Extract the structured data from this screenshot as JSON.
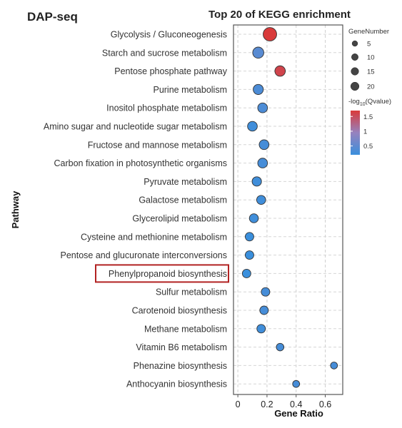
{
  "panel_label": "DAP-seq",
  "chart_data": {
    "type": "scatter",
    "title": "Top 20 of KEGG enrichment",
    "xlabel": "Gene Ratio",
    "ylabel": "Pathway",
    "xlim": [
      -0.03,
      0.72
    ],
    "xticks": [
      0,
      0.2,
      0.4,
      0.6
    ],
    "xtick_labels": [
      "0",
      "0.2",
      "0.4",
      "0.6"
    ],
    "grid": true,
    "legend_position": "right",
    "highlighted_pathway": "Phenylpropanoid biosynthesis",
    "highlight_color": "#b22222",
    "size_legend": {
      "title": "GeneNumber",
      "values": [
        5,
        10,
        15,
        20
      ]
    },
    "color_legend": {
      "title_main": "-log",
      "title_sub": "10",
      "title_tail": "(Qvalue)",
      "ticks": [
        0.5,
        1,
        1.5
      ],
      "tick_labels": [
        "0.5",
        "1",
        "1.5"
      ],
      "range": [
        0.2,
        1.7
      ],
      "low_color": "#3a8fdc",
      "high_color": "#d93a3a"
    },
    "points": [
      {
        "pathway": "Glycolysis / Gluconeogenesis",
        "ratio": 0.22,
        "genes": 22,
        "qvalue": 1.7
      },
      {
        "pathway": "Starch and sucrose metabolism",
        "ratio": 0.14,
        "genes": 13,
        "qvalue": 0.45
      },
      {
        "pathway": "Pentose phosphate pathway",
        "ratio": 0.29,
        "genes": 11,
        "qvalue": 1.6
      },
      {
        "pathway": "Purine metabolism",
        "ratio": 0.14,
        "genes": 10,
        "qvalue": 0.35
      },
      {
        "pathway": "Inositol phosphate metabolism",
        "ratio": 0.17,
        "genes": 9,
        "qvalue": 0.35
      },
      {
        "pathway": "Amino sugar and nucleotide sugar metabolism",
        "ratio": 0.1,
        "genes": 9,
        "qvalue": 0.25
      },
      {
        "pathway": "Fructose and mannose metabolism",
        "ratio": 0.18,
        "genes": 9,
        "qvalue": 0.3
      },
      {
        "pathway": "Carbon fixation in photosynthetic organisms",
        "ratio": 0.17,
        "genes": 9,
        "qvalue": 0.3
      },
      {
        "pathway": "Pyruvate metabolism",
        "ratio": 0.13,
        "genes": 8,
        "qvalue": 0.25
      },
      {
        "pathway": "Galactose metabolism",
        "ratio": 0.16,
        "genes": 7,
        "qvalue": 0.25
      },
      {
        "pathway": "Glycerolipid metabolism",
        "ratio": 0.11,
        "genes": 7,
        "qvalue": 0.25
      },
      {
        "pathway": "Cysteine and methionine metabolism",
        "ratio": 0.08,
        "genes": 6,
        "qvalue": 0.2
      },
      {
        "pathway": "Pentose and glucuronate interconversions",
        "ratio": 0.08,
        "genes": 6,
        "qvalue": 0.2
      },
      {
        "pathway": "Phenylpropanoid biosynthesis",
        "ratio": 0.06,
        "genes": 6,
        "qvalue": 0.2
      },
      {
        "pathway": "Sulfur metabolism",
        "ratio": 0.19,
        "genes": 6,
        "qvalue": 0.3
      },
      {
        "pathway": "Carotenoid biosynthesis",
        "ratio": 0.18,
        "genes": 6,
        "qvalue": 0.3
      },
      {
        "pathway": "Methane metabolism",
        "ratio": 0.16,
        "genes": 6,
        "qvalue": 0.25
      },
      {
        "pathway": "Vitamin B6 metabolism",
        "ratio": 0.29,
        "genes": 4,
        "qvalue": 0.3
      },
      {
        "pathway": "Phenazine biosynthesis",
        "ratio": 0.66,
        "genes": 3,
        "qvalue": 0.3
      },
      {
        "pathway": "Anthocyanin biosynthesis",
        "ratio": 0.4,
        "genes": 3,
        "qvalue": 0.3
      }
    ]
  }
}
